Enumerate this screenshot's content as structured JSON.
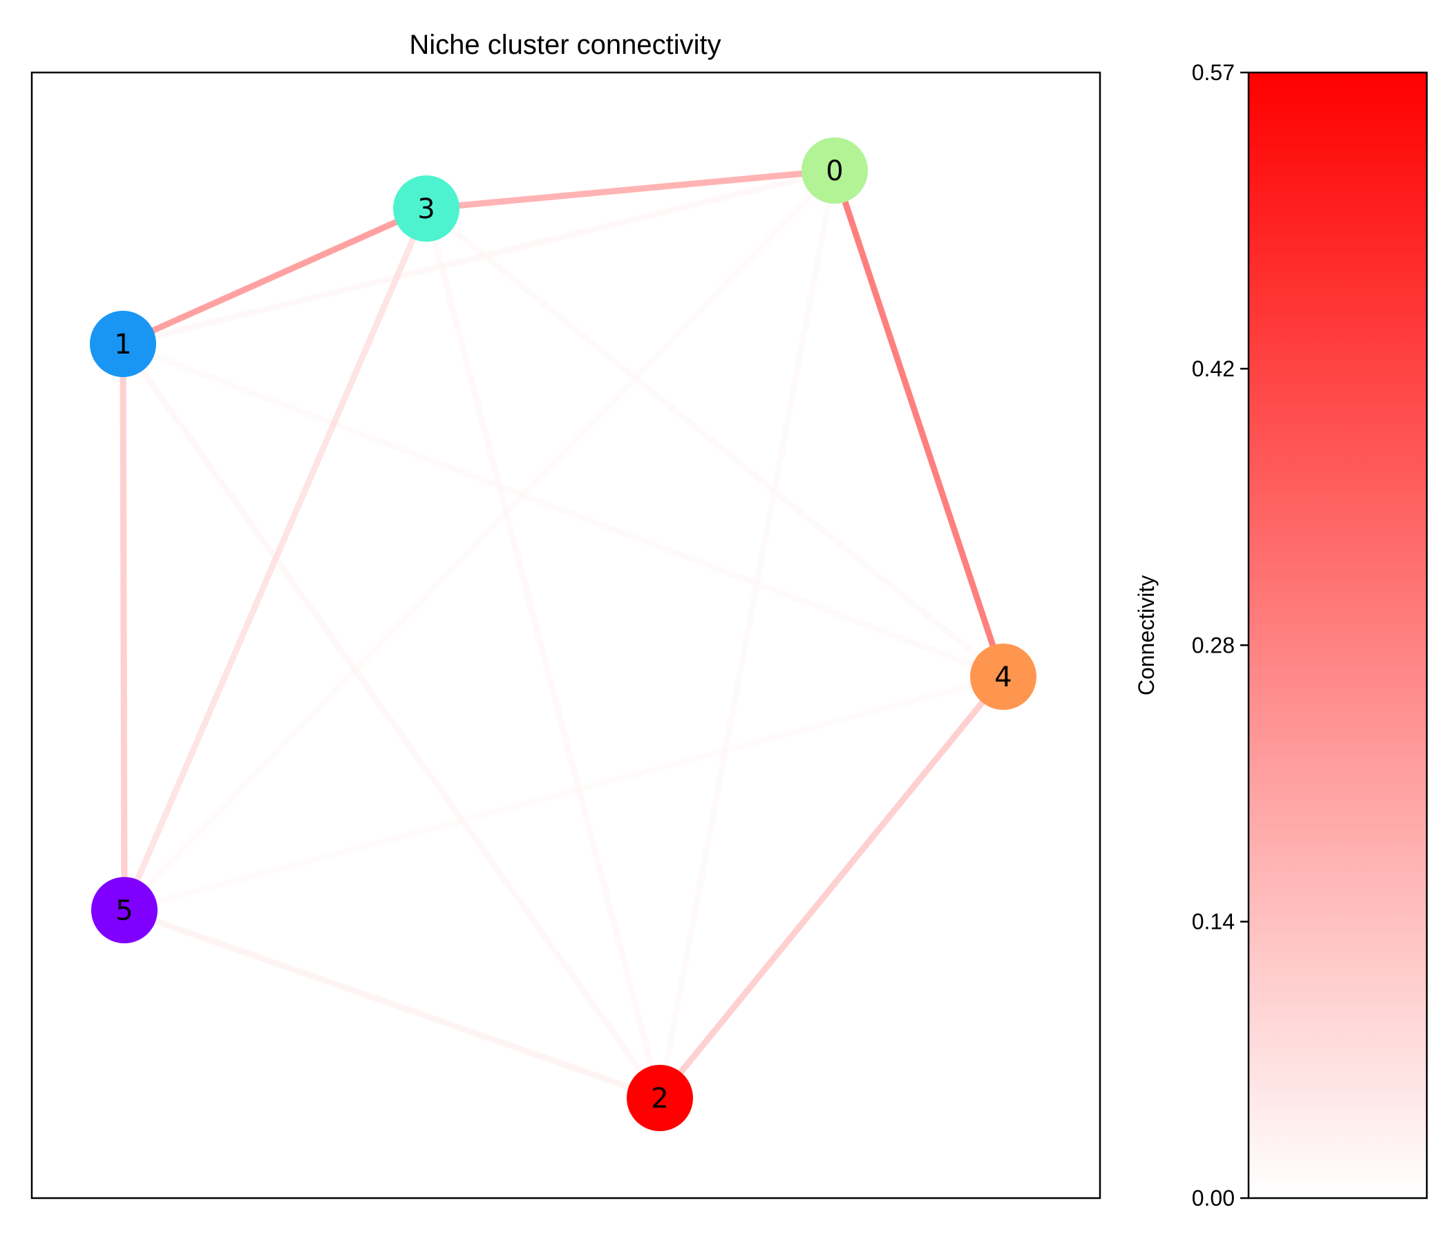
{
  "title": "Niche cluster connectivity",
  "nodes": [
    {
      "id": "0",
      "label": "0",
      "color": "#b2f396"
    },
    {
      "id": "1",
      "label": "1",
      "color": "#1996f3"
    },
    {
      "id": "2",
      "label": "2",
      "color": "#ff0000"
    },
    {
      "id": "3",
      "label": "3",
      "color": "#4df3ce"
    },
    {
      "id": "4",
      "label": "4",
      "color": "#ff964f"
    },
    {
      "id": "5",
      "label": "5",
      "color": "#8000ff"
    }
  ],
  "edges": [
    {
      "source": "0",
      "target": "4",
      "weight": 0.57
    },
    {
      "source": "1",
      "target": "3",
      "weight": 0.42
    },
    {
      "source": "0",
      "target": "3",
      "weight": 0.34
    },
    {
      "source": "1",
      "target": "5",
      "weight": 0.21
    },
    {
      "source": "2",
      "target": "4",
      "weight": 0.21
    },
    {
      "source": "3",
      "target": "5",
      "weight": 0.12
    },
    {
      "source": "2",
      "target": "5",
      "weight": 0.05
    },
    {
      "source": "0",
      "target": "1",
      "weight": 0.03
    },
    {
      "source": "1",
      "target": "2",
      "weight": 0.03
    },
    {
      "source": "2",
      "target": "3",
      "weight": 0.025
    },
    {
      "source": "1",
      "target": "4",
      "weight": 0.02
    },
    {
      "source": "3",
      "target": "4",
      "weight": 0.02
    },
    {
      "source": "0",
      "target": "2",
      "weight": 0.02
    },
    {
      "source": "0",
      "target": "5",
      "weight": 0.015
    },
    {
      "source": "4",
      "target": "5",
      "weight": 0.015
    }
  ],
  "colorbar": {
    "label": "Connectivity",
    "min": 0.0,
    "max": 0.57,
    "ticks": [
      "0.00",
      "0.14",
      "0.28",
      "0.42",
      "0.57"
    ],
    "color_low": "#ffffff",
    "color_high": "#ff0000"
  }
}
